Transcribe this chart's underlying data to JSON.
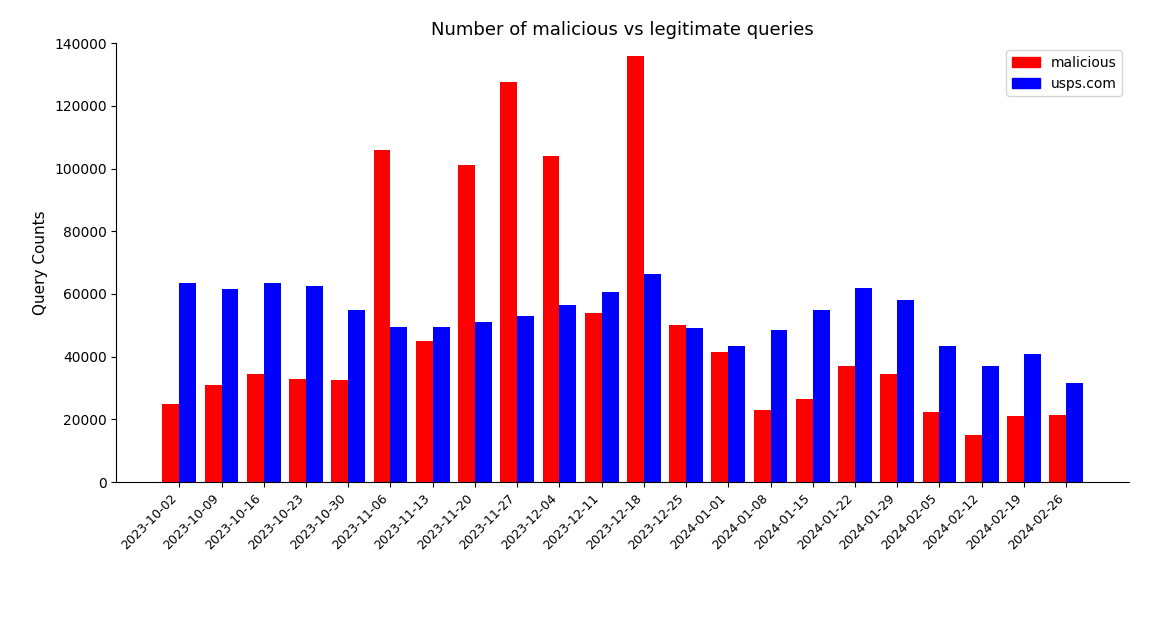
{
  "title": "Number of malicious vs legitimate queries",
  "ylabel": "Query Counts",
  "categories": [
    "2023-10-02",
    "2023-10-09",
    "2023-10-16",
    "2023-10-23",
    "2023-10-30",
    "2023-11-06",
    "2023-11-13",
    "2023-11-20",
    "2023-11-27",
    "2023-12-04",
    "2023-12-11",
    "2023-12-18",
    "2023-12-25",
    "2024-01-01",
    "2024-01-08",
    "2024-01-15",
    "2024-01-22",
    "2024-01-29",
    "2024-02-05",
    "2024-02-12",
    "2024-02-19",
    "2024-02-26"
  ],
  "malicious": [
    25000,
    31000,
    34500,
    33000,
    32500,
    106000,
    45000,
    101000,
    127500,
    104000,
    54000,
    136000,
    50000,
    41500,
    23000,
    26500,
    37000,
    34500,
    22500,
    15000,
    21000,
    21500
  ],
  "usps": [
    63500,
    61500,
    63500,
    62500,
    55000,
    49500,
    49500,
    51000,
    53000,
    56500,
    60500,
    66500,
    49000,
    43500,
    48500,
    55000,
    62000,
    58000,
    43500,
    37000,
    41000,
    31500
  ],
  "malicious_color": "#ff0000",
  "usps_color": "#0000ff",
  "ylim": [
    0,
    140000
  ],
  "yticks": [
    0,
    20000,
    40000,
    60000,
    80000,
    100000,
    120000,
    140000
  ],
  "legend_labels": [
    "malicious",
    "usps.com"
  ],
  "bar_width": 0.4,
  "figsize": [
    11.64,
    6.18
  ],
  "dpi": 100,
  "title_fontsize": 13,
  "axis_label_fontsize": 11,
  "tick_fontsize": 9,
  "legend_fontsize": 10
}
